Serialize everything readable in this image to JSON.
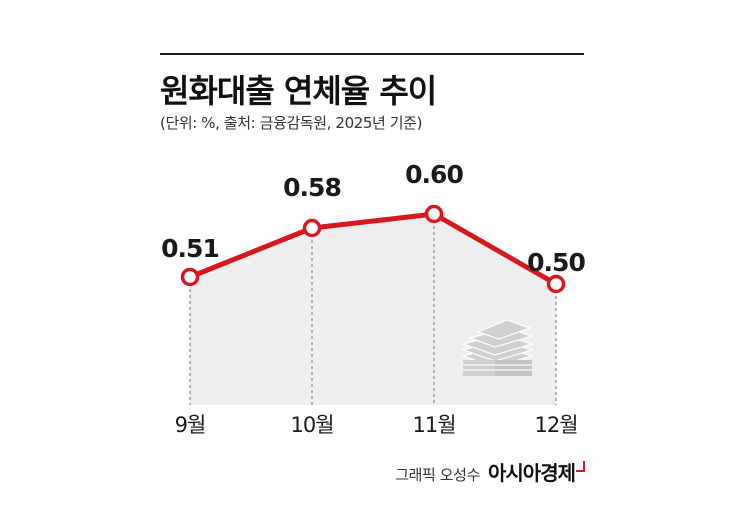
{
  "header": {
    "title": "원화대출 연체율 추이",
    "subtitle": "(단위: %, 출처: 금융감독원, 2025년 기준)"
  },
  "footer": {
    "credit": "그래픽 오성수",
    "brand": "아시아경제"
  },
  "colors": {
    "line": "#d7191f",
    "area": "#eeeeee",
    "text": "#1a1a1a"
  },
  "icons": {
    "illustration": "money-stack-icon"
  },
  "chart_data": {
    "type": "line",
    "categories": [
      "9월",
      "10월",
      "11월",
      "12월"
    ],
    "values": [
      0.51,
      0.58,
      0.6,
      0.5
    ],
    "data_labels": [
      "0.51",
      "0.58",
      "0.60",
      "0.50"
    ],
    "title": "원화대출 연체율 추이",
    "xlabel": "",
    "ylabel": "",
    "unit": "%",
    "grid": false,
    "legend": "none",
    "area_fill": true
  }
}
